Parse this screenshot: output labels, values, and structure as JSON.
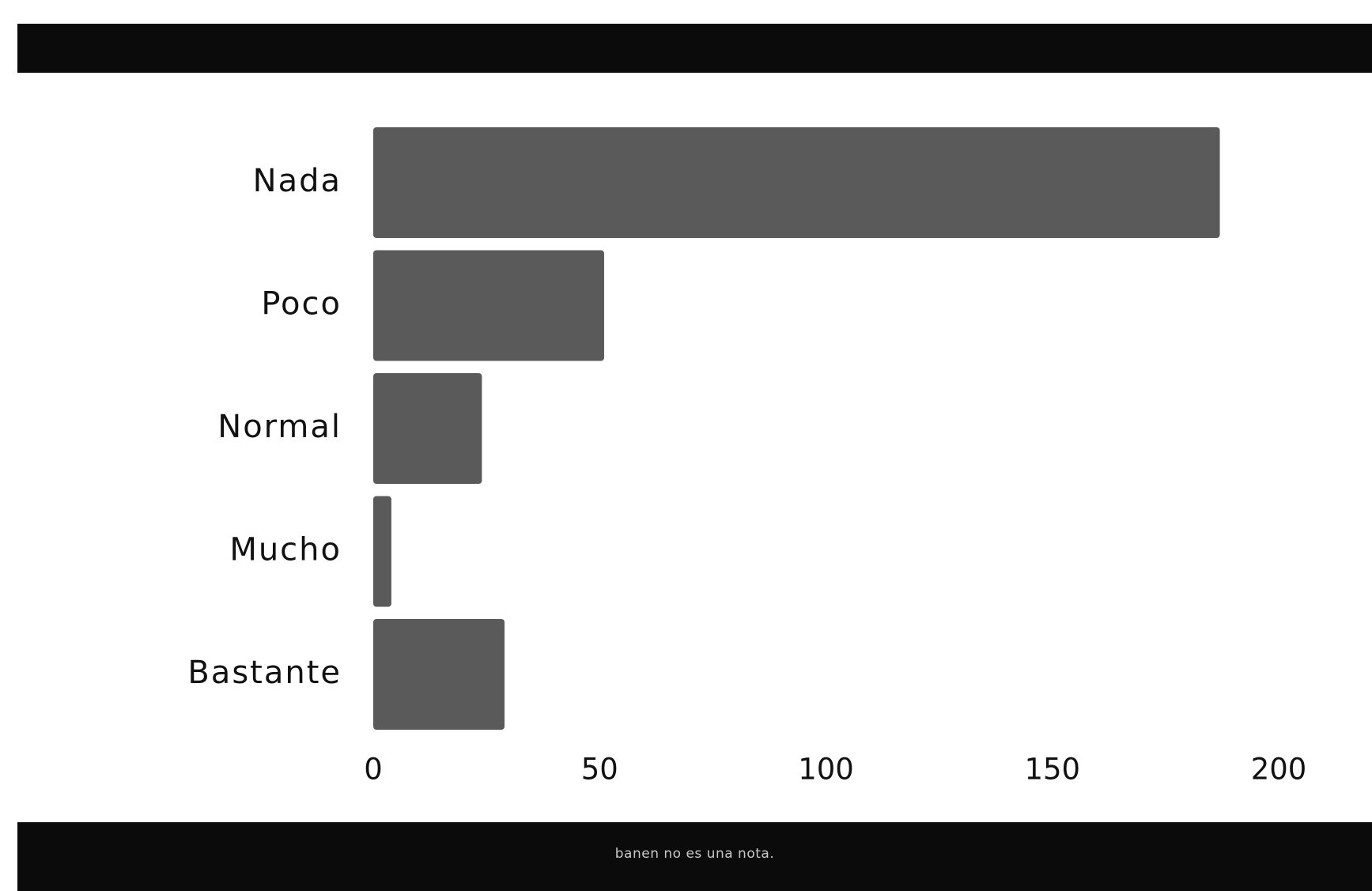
{
  "chart_data": {
    "type": "bar",
    "orientation": "horizontal",
    "categories": [
      "Nada",
      "Poco",
      "Normal",
      "Mucho",
      "Bastante"
    ],
    "values": [
      187,
      51,
      24,
      4,
      29
    ],
    "xlim": [
      0,
      200
    ],
    "xticks": [
      "0",
      "50",
      "100",
      "150",
      "200"
    ],
    "grid": false,
    "bar_color": "#5a5a5a"
  },
  "footer": {
    "text": "banen no es una nota."
  },
  "colors": {
    "band": "#0b0b0b",
    "background": "#ffffff"
  }
}
